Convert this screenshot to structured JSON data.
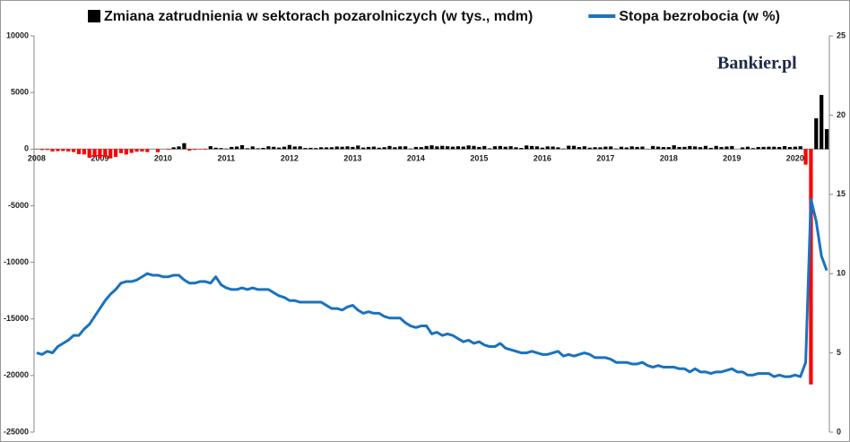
{
  "chart_data": {
    "type": "bar_line",
    "watermark": "Bankier.pl",
    "categories": [
      "2008",
      null,
      null,
      null,
      null,
      null,
      null,
      null,
      null,
      null,
      null,
      null,
      "2009",
      null,
      null,
      null,
      null,
      null,
      null,
      null,
      null,
      null,
      null,
      null,
      "2010",
      null,
      null,
      null,
      null,
      null,
      null,
      null,
      null,
      null,
      null,
      null,
      "2011",
      null,
      null,
      null,
      null,
      null,
      null,
      null,
      null,
      null,
      null,
      null,
      "2012",
      null,
      null,
      null,
      null,
      null,
      null,
      null,
      null,
      null,
      null,
      null,
      "2013",
      null,
      null,
      null,
      null,
      null,
      null,
      null,
      null,
      null,
      null,
      null,
      "2014",
      null,
      null,
      null,
      null,
      null,
      null,
      null,
      null,
      null,
      null,
      null,
      "2015",
      null,
      null,
      null,
      null,
      null,
      null,
      null,
      null,
      null,
      null,
      null,
      "2016",
      null,
      null,
      null,
      null,
      null,
      null,
      null,
      null,
      null,
      null,
      null,
      "2017",
      null,
      null,
      null,
      null,
      null,
      null,
      null,
      null,
      null,
      null,
      null,
      "2018",
      null,
      null,
      null,
      null,
      null,
      null,
      null,
      null,
      null,
      null,
      null,
      "2019",
      null,
      null,
      null,
      null,
      null,
      null,
      null,
      null,
      null,
      null,
      null,
      "2020",
      null,
      null,
      null,
      null,
      null,
      null
    ],
    "series": [
      {
        "name": "Zmiana zatrudnienia w sektorach pozarolniczych (w tys., mdm)",
        "type": "bar",
        "color": "#000000",
        "negative_color": "#ff0000",
        "values": [
          17,
          -84,
          -78,
          -210,
          -182,
          -172,
          -210,
          -259,
          -452,
          -474,
          -765,
          -697,
          -791,
          -703,
          -823,
          -687,
          -361,
          -482,
          -339,
          -232,
          -213,
          -264,
          -8,
          -274,
          -14,
          -59,
          153,
          232,
          522,
          -133,
          -70,
          -34,
          -52,
          257,
          123,
          88,
          42,
          188,
          225,
          346,
          73,
          235,
          70,
          107,
          246,
          202,
          132,
          209,
          360,
          226,
          243,
          96,
          110,
          88,
          160,
          150,
          161,
          225,
          203,
          243,
          190,
          311,
          135,
          192,
          218,
          123,
          165,
          273,
          163,
          237,
          244,
          45,
          187,
          168,
          272,
          330,
          236,
          286,
          249,
          213,
          250,
          221,
          321,
          281,
          190,
          271,
          70,
          251,
          273,
          206,
          254,
          157,
          100,
          321,
          272,
          239,
          126,
          237,
          225,
          153,
          43,
          297,
          291,
          176,
          249,
          124,
          164,
          155,
          216,
          232,
          50,
          207,
          145,
          239,
          190,
          221,
          18,
          271,
          216,
          175,
          176,
          330,
          182,
          196,
          270,
          235,
          170,
          282,
          108,
          277,
          176,
          227,
          268,
          1,
          147,
          210,
          85,
          182,
          194,
          207,
          208,
          185,
          261,
          184,
          214,
          251,
          -1373,
          -20787,
          2725,
          4781,
          1761
        ]
      },
      {
        "name": "Stopa bezrobocia (w %)",
        "type": "line",
        "axis": "y2",
        "color": "#1a72bf",
        "values": [
          5.0,
          4.9,
          5.1,
          5.0,
          5.4,
          5.6,
          5.8,
          6.1,
          6.1,
          6.5,
          6.8,
          7.3,
          7.8,
          8.3,
          8.7,
          9.0,
          9.4,
          9.5,
          9.5,
          9.6,
          9.8,
          10.0,
          9.9,
          9.9,
          9.8,
          9.8,
          9.9,
          9.9,
          9.6,
          9.4,
          9.4,
          9.5,
          9.5,
          9.4,
          9.8,
          9.3,
          9.1,
          9.0,
          9.0,
          9.1,
          9.0,
          9.1,
          9.0,
          9.0,
          9.0,
          8.8,
          8.6,
          8.5,
          8.3,
          8.3,
          8.2,
          8.2,
          8.2,
          8.2,
          8.2,
          8.0,
          7.8,
          7.8,
          7.7,
          7.9,
          8.0,
          7.7,
          7.5,
          7.6,
          7.5,
          7.5,
          7.3,
          7.2,
          7.2,
          7.2,
          6.9,
          6.7,
          6.6,
          6.7,
          6.7,
          6.2,
          6.3,
          6.1,
          6.2,
          6.1,
          5.9,
          5.7,
          5.8,
          5.6,
          5.7,
          5.5,
          5.4,
          5.4,
          5.6,
          5.3,
          5.2,
          5.1,
          5.0,
          5.0,
          5.1,
          5.0,
          4.9,
          4.9,
          5.0,
          5.1,
          4.8,
          4.9,
          4.8,
          4.9,
          5.0,
          4.9,
          4.7,
          4.7,
          4.7,
          4.6,
          4.4,
          4.4,
          4.4,
          4.3,
          4.3,
          4.4,
          4.2,
          4.1,
          4.2,
          4.1,
          4.1,
          4.1,
          4.0,
          4.0,
          3.8,
          4.0,
          3.8,
          3.8,
          3.7,
          3.8,
          3.8,
          3.9,
          4.0,
          3.8,
          3.8,
          3.6,
          3.6,
          3.7,
          3.7,
          3.7,
          3.5,
          3.6,
          3.5,
          3.5,
          3.6,
          3.5,
          4.4,
          14.7,
          13.3,
          11.1,
          10.2
        ]
      }
    ],
    "ylim": [
      -25000,
      10000
    ],
    "yticks": [
      -25000,
      -20000,
      -15000,
      -10000,
      -5000,
      0,
      5000,
      10000
    ],
    "y2lim": [
      0,
      25
    ],
    "y2ticks": [
      0,
      5,
      10,
      15,
      20,
      25
    ],
    "grid": false,
    "legend": "top"
  }
}
